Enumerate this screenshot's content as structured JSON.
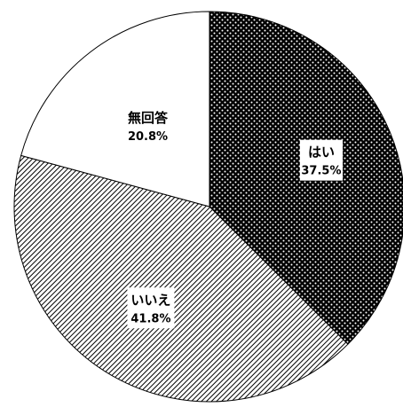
{
  "chart_data": {
    "type": "pie",
    "start_angle": "12 o'clock",
    "direction": "clockwise",
    "legend": "none",
    "slices": [
      {
        "label": "はい",
        "value": 37.5,
        "value_text": "37.5%",
        "fill": "dotted",
        "fill_color": "#000000",
        "pattern_color": "#ffffff",
        "label_background": "#ffffff"
      },
      {
        "label": "いいえ",
        "value": 41.8,
        "value_text": "41.8%",
        "fill": "diagonal-hatch",
        "fill_color": "#ffffff",
        "pattern_color": "#000000",
        "label_background": "#ffffff"
      },
      {
        "label": "無回答",
        "value": 20.8,
        "value_text": "20.8%",
        "fill": "solid",
        "fill_color": "#ffffff",
        "pattern_color": "#ffffff",
        "label_background": "none"
      }
    ],
    "outline_color": "#000000"
  }
}
